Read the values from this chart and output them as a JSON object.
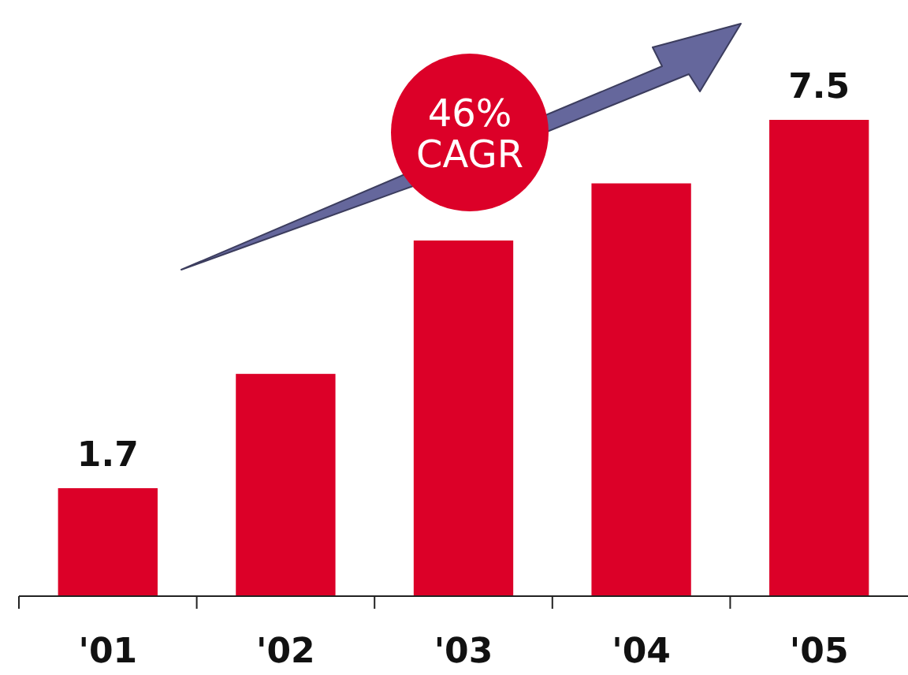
{
  "chart_data": {
    "type": "bar",
    "categories": [
      "'01",
      "'02",
      "'03",
      "'04",
      "'05"
    ],
    "values": [
      1.7,
      3.5,
      5.6,
      6.5,
      7.5
    ],
    "value_labels": [
      "1.7",
      null,
      null,
      null,
      "7.5"
    ],
    "color": "#dc0028",
    "tick_labels": "x",
    "annotations": [
      "46% CAGR"
    ]
  }
}
